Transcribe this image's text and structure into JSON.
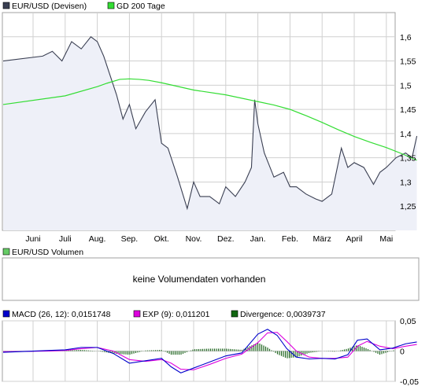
{
  "colors": {
    "price_line": "#3a3f52",
    "price_fill": "#eef0f8",
    "ma_line": "#33dd33",
    "macd_line": "#0000cc",
    "exp_line": "#dd00dd",
    "divergence": "#226622",
    "volume_legend": "#66cc66",
    "grid": "#d0d0d0",
    "border": "#a0a0a0"
  },
  "legend": {
    "price": {
      "label": "EUR/USD (Devisen)",
      "color": "#3a3f52"
    },
    "ma": {
      "label": "GD 200 Tage",
      "color": "#33dd33"
    }
  },
  "volume_panel": {
    "legend": {
      "label": "EUR/USD Volumen",
      "color": "#66cc66"
    },
    "message": "keine Volumendaten vorhanden"
  },
  "macd_legend": [
    {
      "label": "MACD (26, 12): 0,0151748",
      "color": "#0000cc"
    },
    {
      "label": "EXP (9): 0,011201",
      "color": "#dd00dd"
    },
    {
      "label": "Divergence: 0,0039737",
      "color": "#116611"
    }
  ],
  "chart_data": [
    {
      "type": "line",
      "x_tick_labels": [
        "Juni",
        "Juli",
        "Aug.",
        "Sep.",
        "Okt.",
        "Nov.",
        "Dez.",
        "Jan.",
        "Feb.",
        "März",
        "April",
        "Mai"
      ],
      "ylim": [
        1.2,
        1.65
      ],
      "y_ticks": [
        1.25,
        1.3,
        1.35,
        1.4,
        1.45,
        1.5,
        1.55,
        1.6
      ],
      "y_tick_labels": [
        "1,25",
        "1,3",
        "1,35",
        "1,4",
        "1,45",
        "1,5",
        "1,55",
        "1,6"
      ],
      "grid": true,
      "series": [
        {
          "name": "EUR/USD (Devisen)",
          "x": [
            0,
            0.3,
            0.6,
            0.9,
            1.2,
            1.5,
            1.8,
            2.0,
            2.2,
            2.4,
            2.6,
            2.8,
            3.0,
            3.2,
            3.5,
            3.8,
            4.0,
            4.2,
            4.5,
            4.8,
            5.0,
            5.2,
            5.5,
            5.8,
            6.0,
            6.3,
            6.6,
            6.8,
            6.9,
            7.0,
            7.2,
            7.5,
            7.8,
            8.0,
            8.2,
            8.5,
            8.8,
            9.0,
            9.3,
            9.6,
            9.8,
            10.0,
            10.3,
            10.6,
            10.8,
            11.0,
            11.3,
            11.6,
            11.8,
            11.95
          ],
          "values": [
            1.55,
            1.56,
            1.57,
            1.55,
            1.59,
            1.575,
            1.6,
            1.59,
            1.56,
            1.52,
            1.48,
            1.43,
            1.46,
            1.41,
            1.445,
            1.47,
            1.38,
            1.37,
            1.31,
            1.245,
            1.3,
            1.27,
            1.27,
            1.255,
            1.29,
            1.27,
            1.3,
            1.33,
            1.47,
            1.42,
            1.36,
            1.31,
            1.32,
            1.29,
            1.29,
            1.275,
            1.265,
            1.26,
            1.275,
            1.37,
            1.33,
            1.34,
            1.33,
            1.295,
            1.32,
            1.33,
            1.35,
            1.36,
            1.35,
            1.395
          ]
        },
        {
          "name": "GD 200 Tage",
          "x": [
            0,
            1.0,
            2.0,
            2.3,
            2.7,
            3.0,
            3.3,
            3.6,
            4.0,
            5.0,
            6.0,
            7.0,
            7.5,
            8.0,
            8.5,
            9.0,
            9.5,
            10.0,
            10.5,
            11.0,
            11.5,
            11.95
          ],
          "values": [
            1.46,
            1.478,
            1.497,
            1.504,
            1.512,
            1.513,
            1.512,
            1.51,
            1.505,
            1.49,
            1.48,
            1.466,
            1.459,
            1.45,
            1.437,
            1.423,
            1.408,
            1.394,
            1.382,
            1.371,
            1.358,
            1.345
          ]
        }
      ]
    },
    {
      "type": "bar",
      "title": "EUR/USD Volumen",
      "values": []
    },
    {
      "type": "line",
      "ylim": [
        -0.05,
        0.05
      ],
      "y_ticks": [
        -0.05,
        0,
        0.05
      ],
      "y_tick_labels": [
        "-0,05",
        "0",
        "0,05"
      ],
      "x_tick_labels": [
        "Juni",
        "Juli",
        "Aug.",
        "Sep.",
        "Okt.",
        "Nov.",
        "Dez.",
        "Jan.",
        "Feb.",
        "März",
        "April",
        "Mai"
      ],
      "series": [
        {
          "name": "MACD (26, 12)",
          "x": [
            0,
            0.5,
            1.0,
            1.5,
            2.0,
            2.5,
            3.0,
            3.5,
            4.0,
            4.3,
            4.6,
            5.0,
            5.5,
            6.0,
            6.5,
            7.0,
            7.3,
            7.6,
            7.9,
            8.2,
            8.6,
            9.0,
            9.4,
            9.8,
            10.1,
            10.4,
            10.8,
            11.2,
            11.6,
            11.95
          ],
          "values": [
            -0.002,
            0.001,
            0.002,
            0.006,
            0.006,
            -0.004,
            -0.02,
            -0.016,
            -0.012,
            -0.026,
            -0.036,
            -0.028,
            -0.018,
            -0.008,
            -0.003,
            0.028,
            0.036,
            0.026,
            0.004,
            -0.01,
            -0.013,
            -0.012,
            -0.013,
            -0.006,
            0.018,
            0.02,
            0.002,
            0.005,
            0.012,
            0.015
          ]
        },
        {
          "name": "EXP (9)",
          "x": [
            0,
            0.5,
            1.0,
            1.5,
            2.0,
            2.5,
            3.0,
            3.5,
            4.0,
            4.3,
            4.6,
            5.0,
            5.5,
            6.0,
            6.5,
            7.0,
            7.3,
            7.6,
            7.9,
            8.2,
            8.6,
            9.0,
            9.4,
            9.8,
            10.1,
            10.4,
            10.8,
            11.2,
            11.6,
            11.95
          ],
          "values": [
            -0.001,
            0.0,
            0.001,
            0.004,
            0.006,
            0.0,
            -0.014,
            -0.017,
            -0.014,
            -0.02,
            -0.03,
            -0.031,
            -0.022,
            -0.012,
            -0.005,
            0.014,
            0.03,
            0.031,
            0.016,
            0.0,
            -0.01,
            -0.012,
            -0.012,
            -0.01,
            0.008,
            0.016,
            0.008,
            0.004,
            0.008,
            0.011
          ]
        },
        {
          "name": "Divergence",
          "x": [
            0,
            0.5,
            1.0,
            1.5,
            2.0,
            2.5,
            3.0,
            3.5,
            4.0,
            4.3,
            4.6,
            5.0,
            5.5,
            6.0,
            6.5,
            7.0,
            7.3,
            7.6,
            7.9,
            8.2,
            8.6,
            9.0,
            9.4,
            9.8,
            10.1,
            10.4,
            10.8,
            11.2,
            11.6,
            11.95
          ],
          "values": [
            -0.001,
            0.001,
            0.001,
            0.002,
            0.0,
            -0.004,
            -0.006,
            0.001,
            0.002,
            -0.006,
            -0.006,
            0.003,
            0.004,
            0.004,
            0.002,
            0.014,
            0.006,
            -0.005,
            -0.012,
            -0.01,
            -0.003,
            0.0,
            -0.001,
            0.004,
            0.01,
            0.004,
            -0.006,
            0.001,
            0.004,
            0.004
          ]
        }
      ]
    }
  ]
}
